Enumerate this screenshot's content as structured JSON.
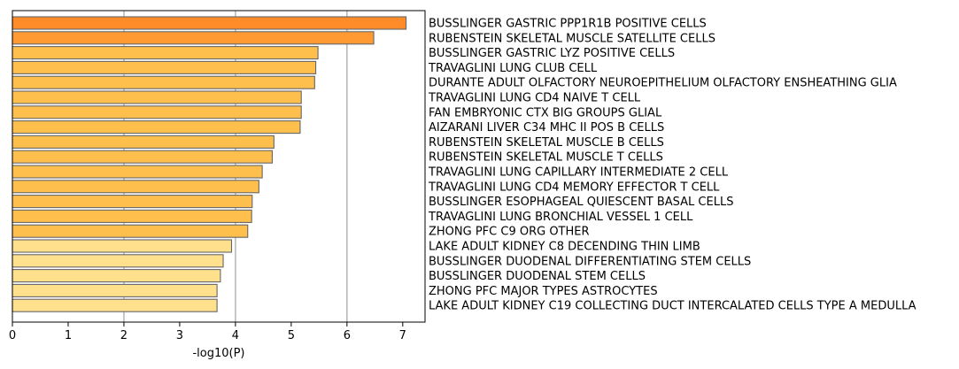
{
  "chart_data": {
    "type": "bar",
    "orientation": "horizontal",
    "title": "",
    "xlabel": "-log10(P)",
    "ylabel": "",
    "xlim": [
      0,
      7.4
    ],
    "xticks": [
      "0",
      "1",
      "2",
      "3",
      "4",
      "5",
      "6",
      "7"
    ],
    "grid": "vertical lines at x = 2, 4, 6",
    "category_label_position": "right",
    "categories": [
      "BUSSLINGER GASTRIC PPP1R1B POSITIVE CELLS",
      "RUBENSTEIN SKELETAL MUSCLE SATELLITE CELLS",
      "BUSSLINGER GASTRIC LYZ POSITIVE CELLS",
      "TRAVAGLINI LUNG CLUB CELL",
      "DURANTE ADULT OLFACTORY NEUROEPITHELIUM OLFACTORY ENSHEATHING GLIA",
      "TRAVAGLINI LUNG CD4 NAIVE T CELL",
      "FAN EMBRYONIC CTX BIG GROUPS GLIAL",
      "AIZARANI LIVER C34 MHC II POS B CELLS",
      "RUBENSTEIN SKELETAL MUSCLE B CELLS",
      "RUBENSTEIN SKELETAL MUSCLE T CELLS",
      "TRAVAGLINI LUNG CAPILLARY INTERMEDIATE 2 CELL",
      "TRAVAGLINI LUNG CD4 MEMORY EFFECTOR T CELL",
      "BUSSLINGER ESOPHAGEAL QUIESCENT BASAL CELLS",
      "TRAVAGLINI LUNG BRONCHIAL VESSEL 1 CELL",
      "ZHONG PFC C9 ORG OTHER",
      "LAKE ADULT KIDNEY C8 DECENDING THIN LIMB",
      "BUSSLINGER DUODENAL DIFFERENTIATING STEM CELLS",
      "BUSSLINGER DUODENAL STEM CELLS",
      "ZHONG PFC MAJOR TYPES ASTROCYTES",
      "LAKE ADULT KIDNEY C19 COLLECTING DUCT INTERCALATED CELLS TYPE A MEDULLA"
    ],
    "values": [
      7.06,
      6.48,
      5.48,
      5.44,
      5.42,
      5.18,
      5.18,
      5.16,
      4.69,
      4.66,
      4.48,
      4.42,
      4.3,
      4.29,
      4.22,
      3.93,
      3.78,
      3.73,
      3.67,
      3.67
    ],
    "bar_colors": [
      "#ff8c28",
      "#ff9a33",
      "#ffbf4d",
      "#ffbf4d",
      "#ffbf4d",
      "#ffbf4d",
      "#ffbf4d",
      "#ffbf4d",
      "#ffbf4d",
      "#ffbf4d",
      "#ffbf4d",
      "#ffbf4d",
      "#ffbf4d",
      "#ffbf4d",
      "#ffbf4d",
      "#ffe08c",
      "#ffe08c",
      "#ffe08c",
      "#ffe08c",
      "#ffe08c"
    ],
    "bar_edge_color": "#666666",
    "grid_color": "#b0b0b0"
  }
}
